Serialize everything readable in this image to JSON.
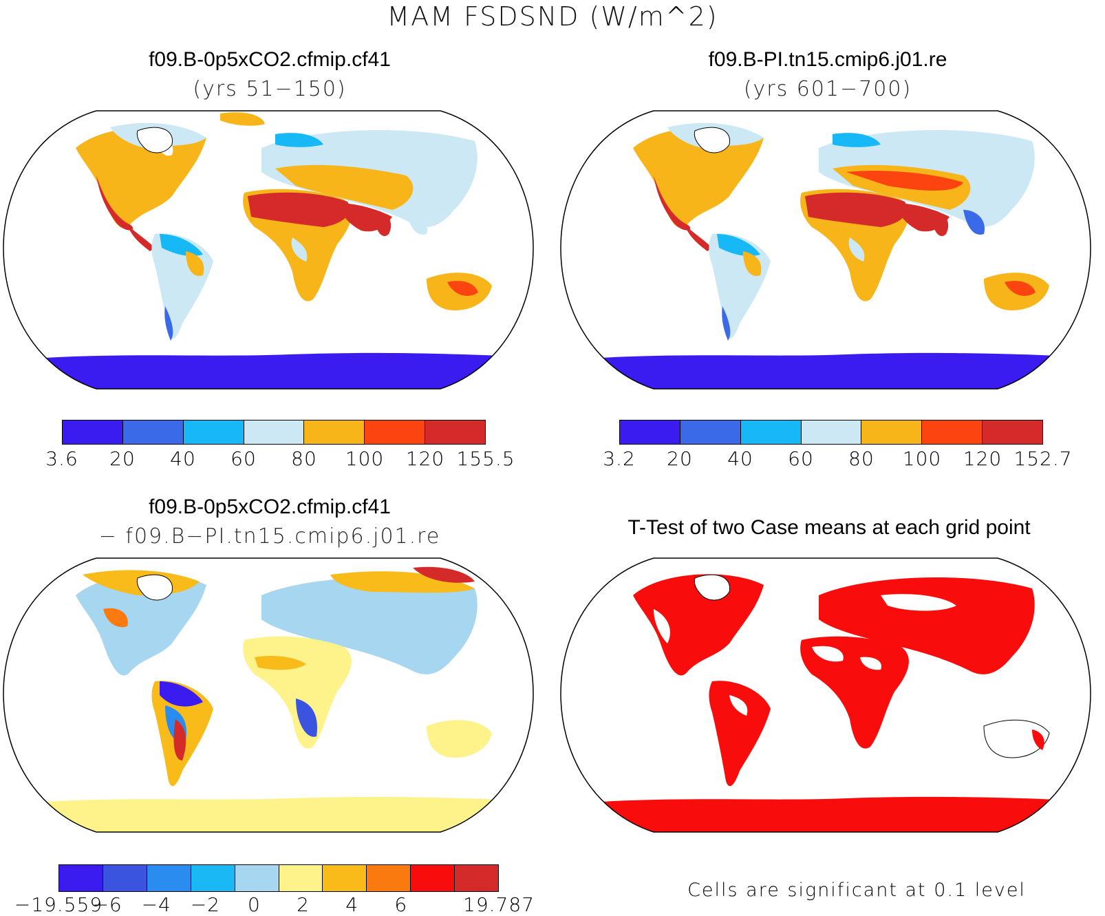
{
  "figure": {
    "title": "MAM FSDSND (W/m^2)"
  },
  "panels": {
    "top_left": {
      "title": "f09.B-0p5xCO2.cfmip.cf41",
      "subtitle": "(yrs 51−150)"
    },
    "top_right": {
      "title": "f09.B-PI.tn15.cmip6.j01.re",
      "subtitle": "(yrs 601−700)"
    },
    "bottom_left": {
      "title": "f09.B-0p5xCO2.cfmip.cf41",
      "subtitle": "− f09.B−PI.tn15.cmip6.j01.re"
    },
    "bottom_right": {
      "title": "T-Test of two Case means at each grid point",
      "footnote": "Cells are significant at 0.1 level"
    }
  },
  "colorbars": {
    "top_left": {
      "colors": [
        "#3a1cf0",
        "#3b6ae8",
        "#16b8f6",
        "#cde8f5",
        "#f8b51a",
        "#fb4410",
        "#d42a2a"
      ],
      "labels": [
        "3.6",
        "20",
        "40",
        "60",
        "80",
        "100",
        "120",
        "155.5"
      ]
    },
    "top_right": {
      "colors": [
        "#3a1cf0",
        "#3b6ae8",
        "#16b8f6",
        "#cde8f5",
        "#f8b51a",
        "#fb4410",
        "#d42a2a"
      ],
      "labels": [
        "3.2",
        "20",
        "40",
        "60",
        "80",
        "100",
        "120",
        "152.7"
      ]
    },
    "bottom_left": {
      "colors": [
        "#3a1cf0",
        "#3b54e0",
        "#2b8cf0",
        "#1ab8f5",
        "#a6d6f0",
        "#fef38a",
        "#f8bb1a",
        "#fa7a10",
        "#f80c0c",
        "#d42a2a"
      ],
      "labels": [
        "−19.559",
        "−6",
        "−4",
        "−2",
        "0",
        "2",
        "4",
        "6",
        "",
        "19.787"
      ]
    }
  }
}
